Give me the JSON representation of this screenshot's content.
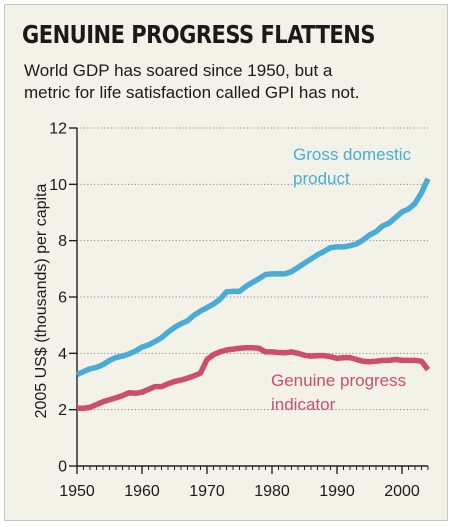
{
  "title": "GENUINE PROGRESS FLATTENS",
  "subtitle": "World GDP has soared since 1950, but a metric for life satisfaction called GPI has not.",
  "colors": {
    "gdp": "#4aabd5",
    "gpi": "#cc4d6c",
    "background": "#f3f2e9",
    "grid": "#8a8a8a"
  },
  "chart_data": {
    "type": "line",
    "ylabel": "2005 US$ (thousands) per capita",
    "xlabel": "",
    "xlim": [
      1950,
      2004
    ],
    "ylim": [
      0,
      12
    ],
    "x_ticks": [
      1950,
      1960,
      1970,
      1980,
      1990,
      2000
    ],
    "y_ticks": [
      0,
      2,
      4,
      6,
      8,
      10,
      12
    ],
    "grid": "horizontal dotted",
    "series": [
      {
        "name": "Gross domestic product",
        "label_lines": [
          "Gross domestic",
          "product"
        ],
        "color": "#4aabd5",
        "x": [
          1950,
          1951,
          1952,
          1953,
          1954,
          1955,
          1956,
          1957,
          1958,
          1959,
          1960,
          1961,
          1962,
          1963,
          1964,
          1965,
          1966,
          1967,
          1968,
          1969,
          1970,
          1971,
          1972,
          1973,
          1974,
          1975,
          1976,
          1977,
          1978,
          1979,
          1980,
          1981,
          1982,
          1983,
          1984,
          1985,
          1986,
          1987,
          1988,
          1989,
          1990,
          1991,
          1992,
          1993,
          1994,
          1995,
          1996,
          1997,
          1998,
          1999,
          2000,
          2001,
          2002,
          2003,
          2004
        ],
        "y": [
          3.25,
          3.35,
          3.45,
          3.5,
          3.6,
          3.75,
          3.85,
          3.9,
          3.98,
          4.08,
          4.22,
          4.3,
          4.42,
          4.55,
          4.75,
          4.92,
          5.05,
          5.15,
          5.35,
          5.5,
          5.62,
          5.75,
          5.92,
          6.18,
          6.2,
          6.2,
          6.38,
          6.52,
          6.65,
          6.8,
          6.82,
          6.82,
          6.82,
          6.9,
          7.05,
          7.2,
          7.35,
          7.5,
          7.62,
          7.75,
          7.78,
          7.78,
          7.82,
          7.88,
          8.02,
          8.2,
          8.32,
          8.52,
          8.62,
          8.82,
          9.02,
          9.12,
          9.32,
          9.7,
          10.2
        ]
      },
      {
        "name": "Genuine progress indicator",
        "label_lines": [
          "Genuine progress",
          "indicator"
        ],
        "color": "#cc4d6c",
        "x": [
          1950,
          1951,
          1952,
          1953,
          1954,
          1955,
          1956,
          1957,
          1958,
          1959,
          1960,
          1961,
          1962,
          1963,
          1964,
          1965,
          1966,
          1967,
          1968,
          1969,
          1970,
          1971,
          1972,
          1973,
          1974,
          1975,
          1976,
          1977,
          1978,
          1979,
          1980,
          1981,
          1982,
          1983,
          1984,
          1985,
          1986,
          1987,
          1988,
          1989,
          1990,
          1991,
          1992,
          1993,
          1994,
          1995,
          1996,
          1997,
          1998,
          1999,
          2000,
          2001,
          2002,
          2003,
          2004
        ],
        "y": [
          2.05,
          2.05,
          2.08,
          2.18,
          2.28,
          2.35,
          2.42,
          2.5,
          2.6,
          2.58,
          2.62,
          2.72,
          2.82,
          2.82,
          2.92,
          3.0,
          3.05,
          3.12,
          3.2,
          3.3,
          3.78,
          3.95,
          4.05,
          4.12,
          4.15,
          4.18,
          4.2,
          4.2,
          4.18,
          4.05,
          4.05,
          4.03,
          4.02,
          4.05,
          4.0,
          3.93,
          3.9,
          3.92,
          3.92,
          3.88,
          3.82,
          3.85,
          3.85,
          3.78,
          3.72,
          3.7,
          3.72,
          3.75,
          3.75,
          3.78,
          3.75,
          3.75,
          3.75,
          3.72,
          3.42
        ]
      }
    ]
  }
}
